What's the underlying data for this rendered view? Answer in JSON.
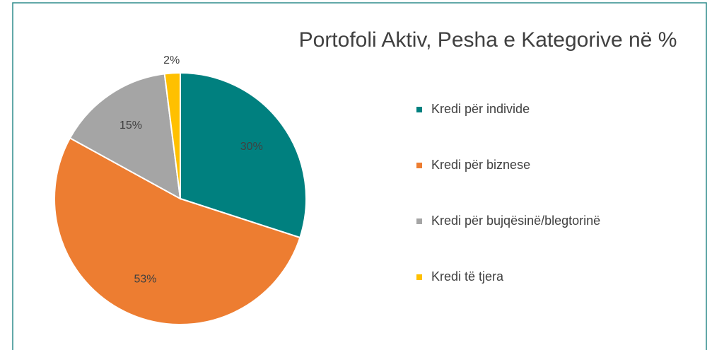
{
  "chart_data": {
    "type": "pie",
    "title": "Portofoli Aktiv, Pesha e Kategorive në %",
    "categories": [
      "Kredi për individe",
      "Kredi për biznese",
      "Kredi për bujqësinë/blegtorinë",
      "Kredi të tjera"
    ],
    "values": [
      30,
      53,
      15,
      2
    ],
    "value_labels": [
      "30%",
      "53%",
      "15%",
      "2%"
    ],
    "colors": [
      "#00807f",
      "#ed7d31",
      "#a5a5a5",
      "#ffc000"
    ],
    "legend": "right"
  }
}
